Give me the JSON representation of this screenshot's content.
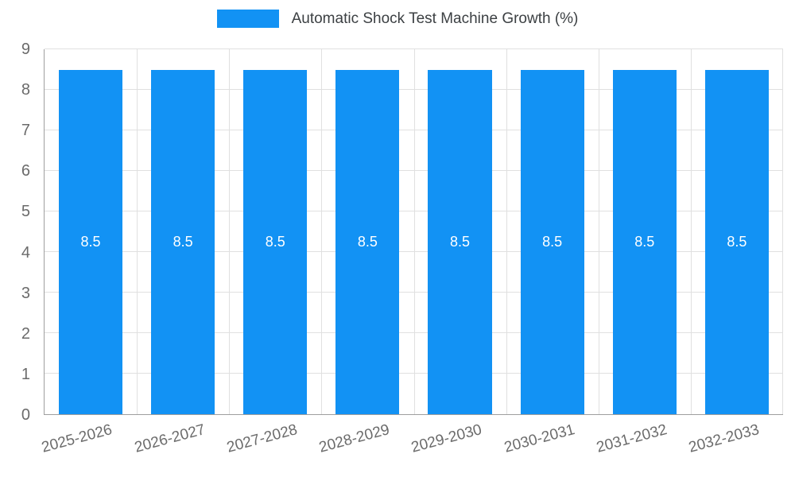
{
  "chart_data": {
    "type": "bar",
    "title": "Automatic Shock Test Machine Growth (%)",
    "categories": [
      "2025-2026",
      "2026-2027",
      "2027-2028",
      "2028-2029",
      "2029-2030",
      "2030-2031",
      "2031-2032",
      "2032-2033"
    ],
    "values": [
      8.5,
      8.5,
      8.5,
      8.5,
      8.5,
      8.5,
      8.5,
      8.5
    ],
    "value_labels": [
      "8.5",
      "8.5",
      "8.5",
      "8.5",
      "8.5",
      "8.5",
      "8.5",
      "8.5"
    ],
    "xlabel": "",
    "ylabel": "",
    "ylim": [
      0,
      9
    ],
    "yticks": [
      "0",
      "1",
      "2",
      "3",
      "4",
      "5",
      "6",
      "7",
      "8",
      "9"
    ],
    "grid": true,
    "legend_position": "top",
    "bar_color": "#1292f4",
    "value_label_color": "#ffffff"
  }
}
